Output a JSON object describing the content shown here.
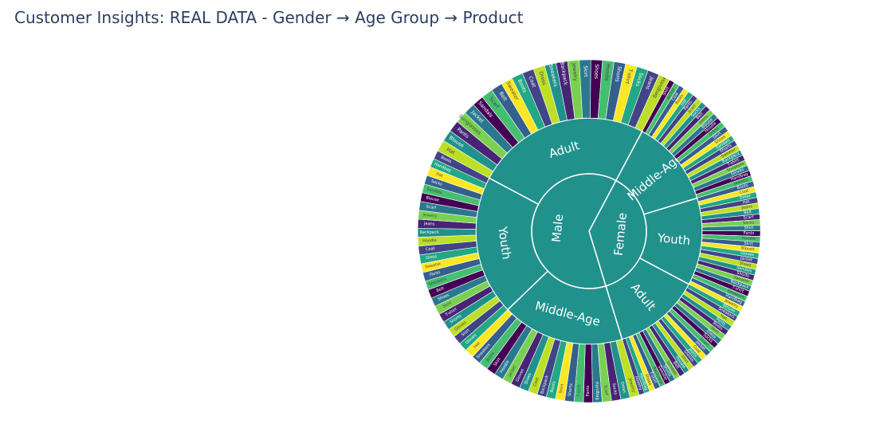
{
  "title": "Customer Insights: REAL DATA - Gender → Age Group → Product",
  "colors": {
    "title_text": "#2a3f5f",
    "segment_fill": "#21918c",
    "segment_stroke": "#ffffff",
    "palette": [
      "#440154",
      "#482475",
      "#414487",
      "#355f8d",
      "#2a788e",
      "#21918c",
      "#22a884",
      "#44bf70",
      "#7ad151",
      "#bddf26",
      "#fde725"
    ]
  },
  "chart_data": {
    "type": "sunburst",
    "levels": [
      "Gender",
      "Age Group",
      "Product"
    ],
    "center": {
      "label": "",
      "value": 1.0
    },
    "genders": [
      {
        "name": "Male",
        "share": 0.625,
        "age_groups": [
          {
            "name": "Adult",
            "share": 0.25,
            "products": [
              "Hat",
              "Blouse",
              "Pants",
              "Sunglasses",
              "Jacket",
              "Sandals",
              "Scarf",
              "Belt",
              "Sweater",
              "Boots",
              "Coat",
              "Dress",
              "Sneakers",
              "Backpack",
              "Jewelry",
              "Skirt",
              "Shoes",
              "Hoodie",
              "Shorts",
              "T-shirt",
              "Socks",
              "Jeans",
              "Handbag"
            ]
          },
          {
            "name": "Youth",
            "share": 0.2,
            "products": [
              "Gloves",
              "Shirt",
              "Gloves",
              "Shorts",
              "T-shirt",
              "Skirt",
              "Shoes",
              "Belt",
              "Sneakers",
              "Pants",
              "Sweater",
              "Dress",
              "Coat",
              "Hoodie",
              "Backpack",
              "Jeans",
              "Jewelry",
              "Scarf",
              "Blouse",
              "Sandals",
              "Socks",
              "Hat",
              "Handbag",
              "Boots"
            ]
          },
          {
            "name": "Middle-Age",
            "share": 0.175,
            "products": [
              "Jewelry",
              "Dress",
              "Socks",
              "Scarf",
              "Handbag",
              "Pants",
              "T-shirt",
              "Shorts",
              "Shirt",
              "Boots",
              "Backpack",
              "Coat",
              "Shoes",
              "Gloves",
              "Jacket",
              "Hoodie",
              "Skirt",
              "Jeans",
              "Sneakers",
              "Hat"
            ]
          }
        ]
      },
      {
        "name": "Female",
        "share": 0.375,
        "age_groups": [
          {
            "name": "Adult",
            "share": 0.125,
            "products": [
              "Blouse",
              "Sneakers",
              "Hat",
              "Pants",
              "Boots",
              "Skirt",
              "Dress",
              "Socks",
              "Scarf",
              "Jacket",
              "Coat",
              "Jeans",
              "Gloves",
              "Shirt",
              "Hoodie",
              "Belt",
              "Sandals",
              "Shorts",
              "Sweater",
              "Backpack",
              "T-shirt",
              "Shoes",
              "Handbag",
              "Jewelry"
            ]
          },
          {
            "name": "Youth",
            "share": 0.125,
            "products": [
              "Boots",
              "Coat",
              "Dress",
              "Hat",
              "Jeans",
              "Belt",
              "Scarf",
              "Socks",
              "Shirt",
              "Pants",
              "Hoodie",
              "Skirt",
              "Blouse",
              "Gloves",
              "Jacket",
              "Shoes",
              "Sandals",
              "Shorts",
              "Sweater",
              "Backpack",
              "T-shirt",
              "Sneakers",
              "Handbag",
              "Jewelry"
            ]
          },
          {
            "name": "Middle-Age",
            "share": 0.125,
            "products": [
              "Shirt",
              "Jacket",
              "Coat",
              "Boots",
              "Hat",
              "Pants",
              "Scarf",
              "Socks",
              "Belt",
              "Jeans",
              "Blouse",
              "Hoodie",
              "Dress",
              "Skirt",
              "Shoes",
              "Sandals",
              "Shorts",
              "Sweater",
              "Backpack",
              "T-shirt",
              "Sneakers",
              "Gloves",
              "Handbag",
              "Jewelry"
            ]
          }
        ]
      }
    ]
  }
}
